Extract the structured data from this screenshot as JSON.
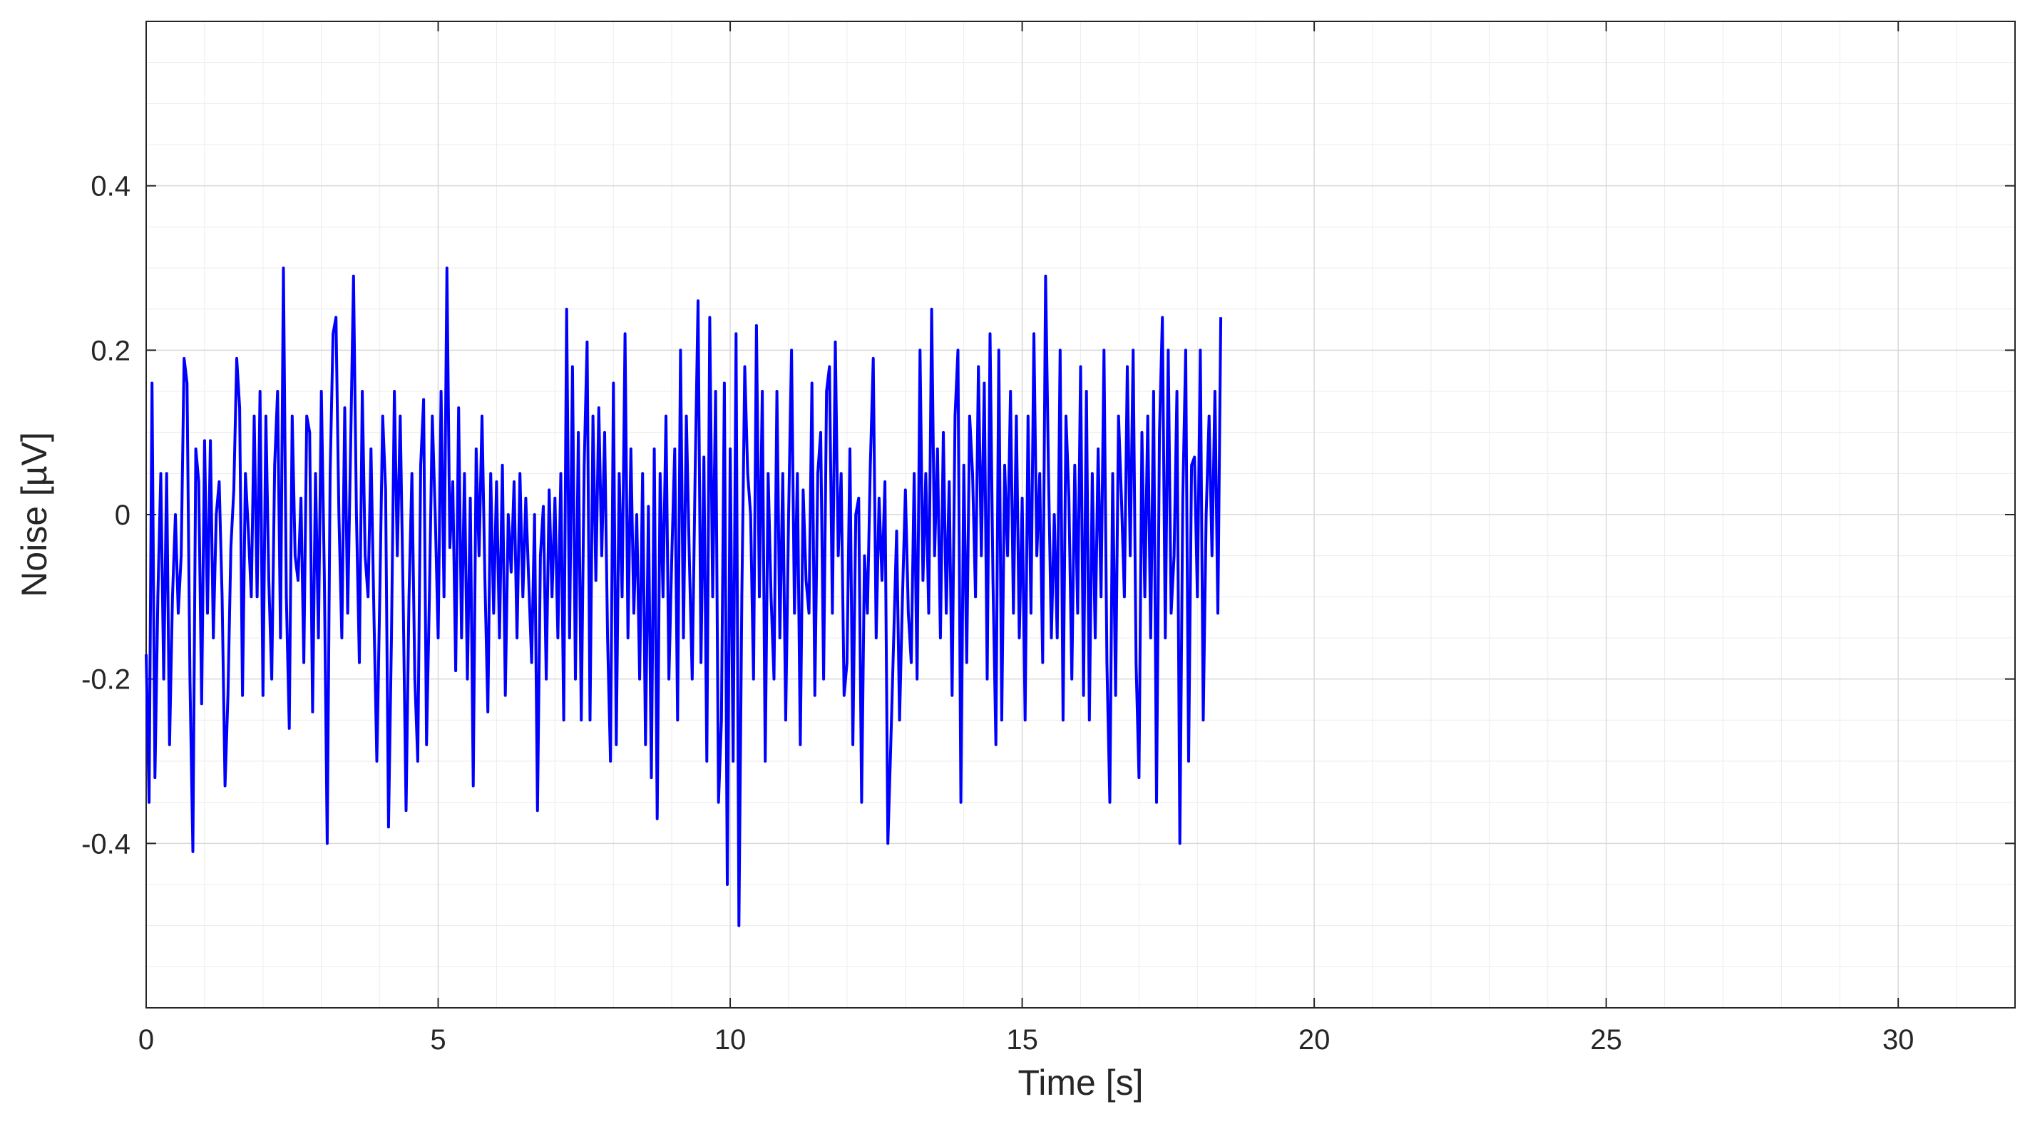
{
  "chart_data": {
    "type": "line",
    "title": "",
    "xlabel": "Time [s]",
    "ylabel": "Noise [µV]",
    "xlim": [
      0,
      32
    ],
    "ylim": [
      -0.6,
      0.6
    ],
    "x_ticks": [
      0,
      5,
      10,
      15,
      20,
      25,
      30
    ],
    "x_tick_labels": [
      "0",
      "5",
      "10",
      "15",
      "20",
      "25",
      "30"
    ],
    "y_ticks": [
      -0.4,
      -0.2,
      0,
      0.2,
      0.4
    ],
    "y_tick_labels": [
      "-0.4",
      "-0.2",
      "0",
      "0.2",
      "0.4"
    ],
    "grid": true,
    "minor_grid": true,
    "line_color": "#0000ff",
    "series": [
      {
        "x_start": 0,
        "x_step": 0.05,
        "values": [
          -0.17,
          -0.35,
          0.16,
          -0.32,
          -0.1,
          0.05,
          -0.2,
          0.05,
          -0.28,
          -0.1,
          0.0,
          -0.12,
          -0.05,
          0.19,
          0.16,
          -0.2,
          -0.41,
          0.08,
          0.04,
          -0.23,
          0.09,
          -0.12,
          0.09,
          -0.15,
          0.0,
          0.04,
          -0.1,
          -0.33,
          -0.22,
          -0.04,
          0.03,
          0.19,
          0.13,
          -0.22,
          0.05,
          -0.02,
          -0.1,
          0.12,
          -0.1,
          0.15,
          -0.22,
          0.12,
          -0.08,
          -0.2,
          0.06,
          0.15,
          -0.15,
          0.3,
          -0.1,
          -0.26,
          0.12,
          -0.05,
          -0.08,
          0.02,
          -0.18,
          0.12,
          0.1,
          -0.24,
          0.05,
          -0.15,
          0.15,
          -0.07,
          -0.4,
          0.05,
          0.22,
          0.24,
          0.0,
          -0.15,
          0.13,
          -0.12,
          0.08,
          0.29,
          0.0,
          -0.18,
          0.15,
          -0.05,
          -0.1,
          0.08,
          -0.12,
          -0.3,
          -0.1,
          0.12,
          0.03,
          -0.38,
          -0.15,
          0.15,
          -0.05,
          0.12,
          -0.1,
          -0.36,
          -0.1,
          0.05,
          -0.2,
          -0.3,
          0.06,
          0.14,
          -0.28,
          -0.1,
          0.12,
          0.0,
          -0.15,
          0.15,
          -0.1,
          0.3,
          -0.04,
          0.04,
          -0.19,
          0.13,
          -0.15,
          0.05,
          -0.2,
          0.02,
          -0.33,
          0.08,
          -0.05,
          0.12,
          -0.08,
          -0.24,
          0.05,
          -0.12,
          0.04,
          -0.15,
          0.06,
          -0.22,
          0.0,
          -0.07,
          0.04,
          -0.15,
          0.05,
          -0.1,
          0.02,
          -0.08,
          -0.18,
          0.0,
          -0.36,
          -0.05,
          0.01,
          -0.2,
          0.03,
          -0.1,
          0.02,
          -0.15,
          0.05,
          -0.25,
          0.25,
          -0.15,
          0.18,
          -0.2,
          0.1,
          -0.25,
          0.06,
          0.21,
          -0.25,
          0.12,
          -0.08,
          0.13,
          -0.05,
          0.1,
          -0.15,
          -0.3,
          0.16,
          -0.28,
          0.05,
          -0.1,
          0.22,
          -0.15,
          0.08,
          -0.12,
          0.0,
          -0.2,
          0.05,
          -0.28,
          0.01,
          -0.32,
          0.08,
          -0.37,
          0.05,
          -0.1,
          0.12,
          -0.2,
          -0.05,
          0.08,
          -0.25,
          0.2,
          -0.15,
          0.12,
          -0.05,
          -0.2,
          0.05,
          0.26,
          -0.18,
          0.07,
          -0.3,
          0.24,
          -0.1,
          0.15,
          -0.35,
          -0.25,
          0.16,
          -0.45,
          0.08,
          -0.3,
          0.22,
          -0.5,
          -0.1,
          0.18,
          0.05,
          0.0,
          -0.2,
          0.23,
          -0.1,
          0.15,
          -0.3,
          0.05,
          -0.1,
          -0.2,
          0.15,
          -0.15,
          0.05,
          -0.25,
          0.0,
          0.2,
          -0.12,
          0.05,
          -0.28,
          0.03,
          -0.08,
          -0.12,
          0.16,
          -0.22,
          0.05,
          0.1,
          -0.2,
          0.15,
          0.18,
          -0.12,
          0.21,
          -0.05,
          0.05,
          -0.22,
          -0.18,
          0.08,
          -0.28,
          0.0,
          0.02,
          -0.35,
          -0.05,
          -0.12,
          0.06,
          0.19,
          -0.15,
          0.02,
          -0.08,
          0.04,
          -0.4,
          -0.28,
          -0.15,
          -0.02,
          -0.25,
          -0.1,
          0.03,
          -0.12,
          -0.18,
          0.05,
          -0.2,
          0.2,
          -0.08,
          0.05,
          -0.12,
          0.25,
          -0.05,
          0.08,
          -0.15,
          0.1,
          -0.12,
          0.04,
          -0.22,
          0.12,
          0.2,
          -0.35,
          0.06,
          -0.18,
          0.12,
          0.05,
          -0.1,
          0.18,
          -0.05,
          0.16,
          -0.2,
          0.22,
          -0.08,
          -0.28,
          0.2,
          -0.25,
          0.06,
          -0.05,
          0.15,
          -0.12,
          0.12,
          -0.15,
          0.02,
          -0.25,
          0.12,
          -0.12,
          0.22,
          -0.05,
          0.05,
          -0.18,
          0.29,
          0.05,
          -0.15,
          0.0,
          -0.15,
          0.2,
          -0.25,
          0.12,
          0.02,
          -0.2,
          0.06,
          -0.12,
          0.18,
          -0.22,
          0.15,
          -0.25,
          0.05,
          -0.15,
          0.08,
          -0.1,
          0.2,
          -0.18,
          -0.35,
          0.05,
          -0.22,
          0.12,
          0.02,
          -0.1,
          0.18,
          -0.05,
          0.2,
          -0.18,
          -0.32,
          0.1,
          -0.1,
          0.12,
          -0.15,
          0.15,
          -0.35,
          0.1,
          0.24,
          -0.15,
          0.2,
          -0.12,
          -0.05,
          0.15,
          -0.4,
          0.02,
          0.2,
          -0.3,
          0.06,
          0.07,
          -0.1,
          0.2,
          -0.25,
          0.0,
          0.12,
          -0.05,
          0.15,
          -0.12,
          0.24
        ]
      }
    ]
  }
}
